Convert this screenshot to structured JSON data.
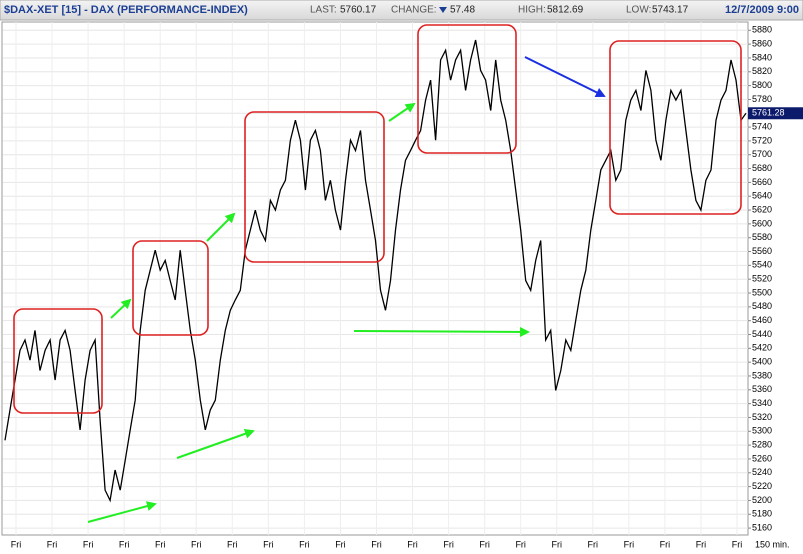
{
  "header": {
    "title": "$DAX-XET [15] - DAX (PERFORMANCE-INDEX)",
    "last_label": "LAST:",
    "last": "5760.17",
    "change_label": "CHANGE:",
    "change": "57.48",
    "high_label": "HIGH:",
    "high": "5812.69",
    "low_label": "LOW:",
    "low": "5743.17",
    "date": "12/7/2009 9:00"
  },
  "chart_data": {
    "type": "line",
    "color": "#000000",
    "grid": true,
    "values": [
      5287,
      5331,
      5374,
      5417,
      5432,
      5403,
      5446,
      5388,
      5417,
      5432,
      5374,
      5432,
      5446,
      5417,
      5359,
      5302,
      5374,
      5417,
      5432,
      5316,
      5215,
      5200,
      5244,
      5215,
      5258,
      5302,
      5345,
      5446,
      5504,
      5533,
      5562,
      5533,
      5547,
      5518,
      5490,
      5562,
      5504,
      5446,
      5403,
      5345,
      5302,
      5331,
      5345,
      5403,
      5446,
      5475,
      5490,
      5504,
      5562,
      5591,
      5620,
      5591,
      5576,
      5634,
      5620,
      5649,
      5663,
      5721,
      5750,
      5721,
      5649,
      5721,
      5735,
      5706,
      5634,
      5663,
      5620,
      5591,
      5663,
      5721,
      5706,
      5735,
      5663,
      5620,
      5576,
      5504,
      5475,
      5518,
      5591,
      5649,
      5692,
      5706,
      5721,
      5735,
      5779,
      5808,
      5721,
      5837,
      5851,
      5808,
      5837,
      5851,
      5793,
      5837,
      5866,
      5822,
      5808,
      5764,
      5837,
      5779,
      5750,
      5706,
      5649,
      5591,
      5518,
      5504,
      5547,
      5576,
      5432,
      5446,
      5359,
      5388,
      5432,
      5417,
      5461,
      5504,
      5533,
      5591,
      5634,
      5678,
      5692,
      5706,
      5663,
      5678,
      5750,
      5779,
      5793,
      5764,
      5822,
      5793,
      5721,
      5692,
      5750,
      5793,
      5779,
      5793,
      5735,
      5678,
      5634,
      5620,
      5663,
      5678,
      5750,
      5779,
      5793,
      5837,
      5808,
      5750,
      5760
    ],
    "ylim": [
      5150,
      5892
    ],
    "yticks": [
      5160,
      5180,
      5200,
      5220,
      5240,
      5260,
      5280,
      5300,
      5320,
      5340,
      5360,
      5380,
      5400,
      5420,
      5440,
      5460,
      5480,
      5500,
      5520,
      5540,
      5560,
      5580,
      5600,
      5620,
      5640,
      5660,
      5680,
      5700,
      5720,
      5740,
      5760,
      5780,
      5800,
      5820,
      5840,
      5860,
      5880
    ],
    "x_labels": [
      "Fri",
      "Fri",
      "Fri",
      "Fri",
      "Fri",
      "Fri",
      "Fri",
      "Fri",
      "Fri",
      "Fri",
      "Fri",
      "Fri",
      "Fri",
      "Fri",
      "Fri",
      "Fri",
      "Fri",
      "Fri",
      "Fri",
      "Fri",
      "Fri"
    ],
    "x_unit": "150 min.",
    "last_price_label": "5761.28"
  }
}
